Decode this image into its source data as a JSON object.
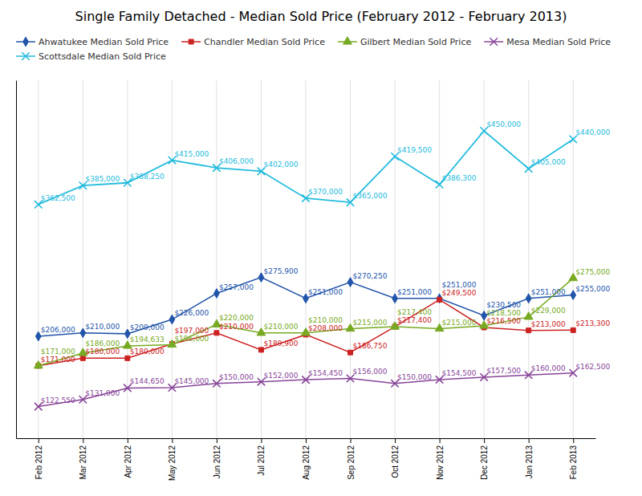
{
  "chart_data": {
    "type": "line",
    "title": "Single Family Detached - Median Sold Price (February 2012 - February 2013)",
    "categories": [
      "Feb 2012",
      "Mar 2012",
      "Apr 2012",
      "May 2012",
      "Jun 2012",
      "Jul 2012",
      "Aug 2012",
      "Sep 2012",
      "Oct 2012",
      "Nov 2012",
      "Dec 2012",
      "Jan 2013",
      "Feb 2013"
    ],
    "series": [
      {
        "name": "Ahwatukee Median Sold Price",
        "color": "#2255AA",
        "marker": "diamond",
        "values": [
          206000,
          210000,
          209000,
          226000,
          257000,
          275900,
          251000,
          270250,
          251000,
          251000,
          230500,
          251000,
          255000
        ],
        "value_labels": [
          "$206,000",
          "$210,000",
          "$209,000",
          "$226,000",
          "$257,000",
          "$275,900",
          "$251,000",
          "$270,250",
          "$251,000",
          "$251,000",
          "$230,500",
          "$251,000",
          "$255,000"
        ]
      },
      {
        "name": "Chandler Median Sold Price",
        "color": "#CC2222",
        "marker": "square",
        "values": [
          171000,
          180000,
          180000,
          197000,
          210000,
          189900,
          208000,
          186750,
          217400,
          249500,
          216500,
          213000,
          213300
        ],
        "value_labels": [
          "$171,000",
          "$180,000",
          "$180,000",
          "$197,000",
          "$210,000",
          "$189,900",
          "$208,000",
          "$186,750",
          "$217,400",
          "$249,500",
          "$216,500",
          "$213,000",
          "$213,300"
        ]
      },
      {
        "name": "Gilbert Median Sold Price",
        "color": "#77AA22",
        "marker": "triangle",
        "values": [
          171000,
          186000,
          194633,
          196000,
          220000,
          210000,
          210000,
          215000,
          217400,
          215000,
          218500,
          229000,
          275000
        ],
        "value_labels": [
          "$171,000",
          "$186,000",
          "$194,633",
          "$196,000",
          "$220,000",
          "$210,000",
          "$210,000",
          "$215,000",
          "$217,400",
          "$215,000",
          "$218,500",
          "$229,000",
          "$275,000"
        ]
      },
      {
        "name": "Mesa Median Sold Price",
        "color": "#884499",
        "marker": "x",
        "values": [
          122550,
          131000,
          144650,
          145000,
          150000,
          152000,
          154450,
          156000,
          150000,
          154500,
          157500,
          160000,
          162500
        ],
        "value_labels": [
          "$122,550",
          "$131,000",
          "$144,650",
          "$145,000",
          "$150,000",
          "$152,000",
          "$154,450",
          "$156,000",
          "$150,000",
          "$154,500",
          "$157,500",
          "$160,000",
          "$162,500"
        ]
      },
      {
        "name": "Scottsdale Median Sold Price",
        "color": "#22BBDD",
        "marker": "x",
        "values": [
          362500,
          385000,
          388250,
          415000,
          406000,
          402000,
          370000,
          365000,
          419500,
          386300,
          450000,
          405000,
          440000
        ],
        "value_labels": [
          "$362,500",
          "$385,000",
          "$388,250",
          "$415,000",
          "$406,000",
          "$402,000",
          "$370,000",
          "$365,000",
          "$419,500",
          "$386,300",
          "$450,000",
          "$405,000",
          "$440,000"
        ]
      }
    ],
    "ylim": [
      85000,
      510000
    ],
    "grid": true,
    "legend": "top",
    "data_labels": true,
    "tick_labels": "x"
  }
}
